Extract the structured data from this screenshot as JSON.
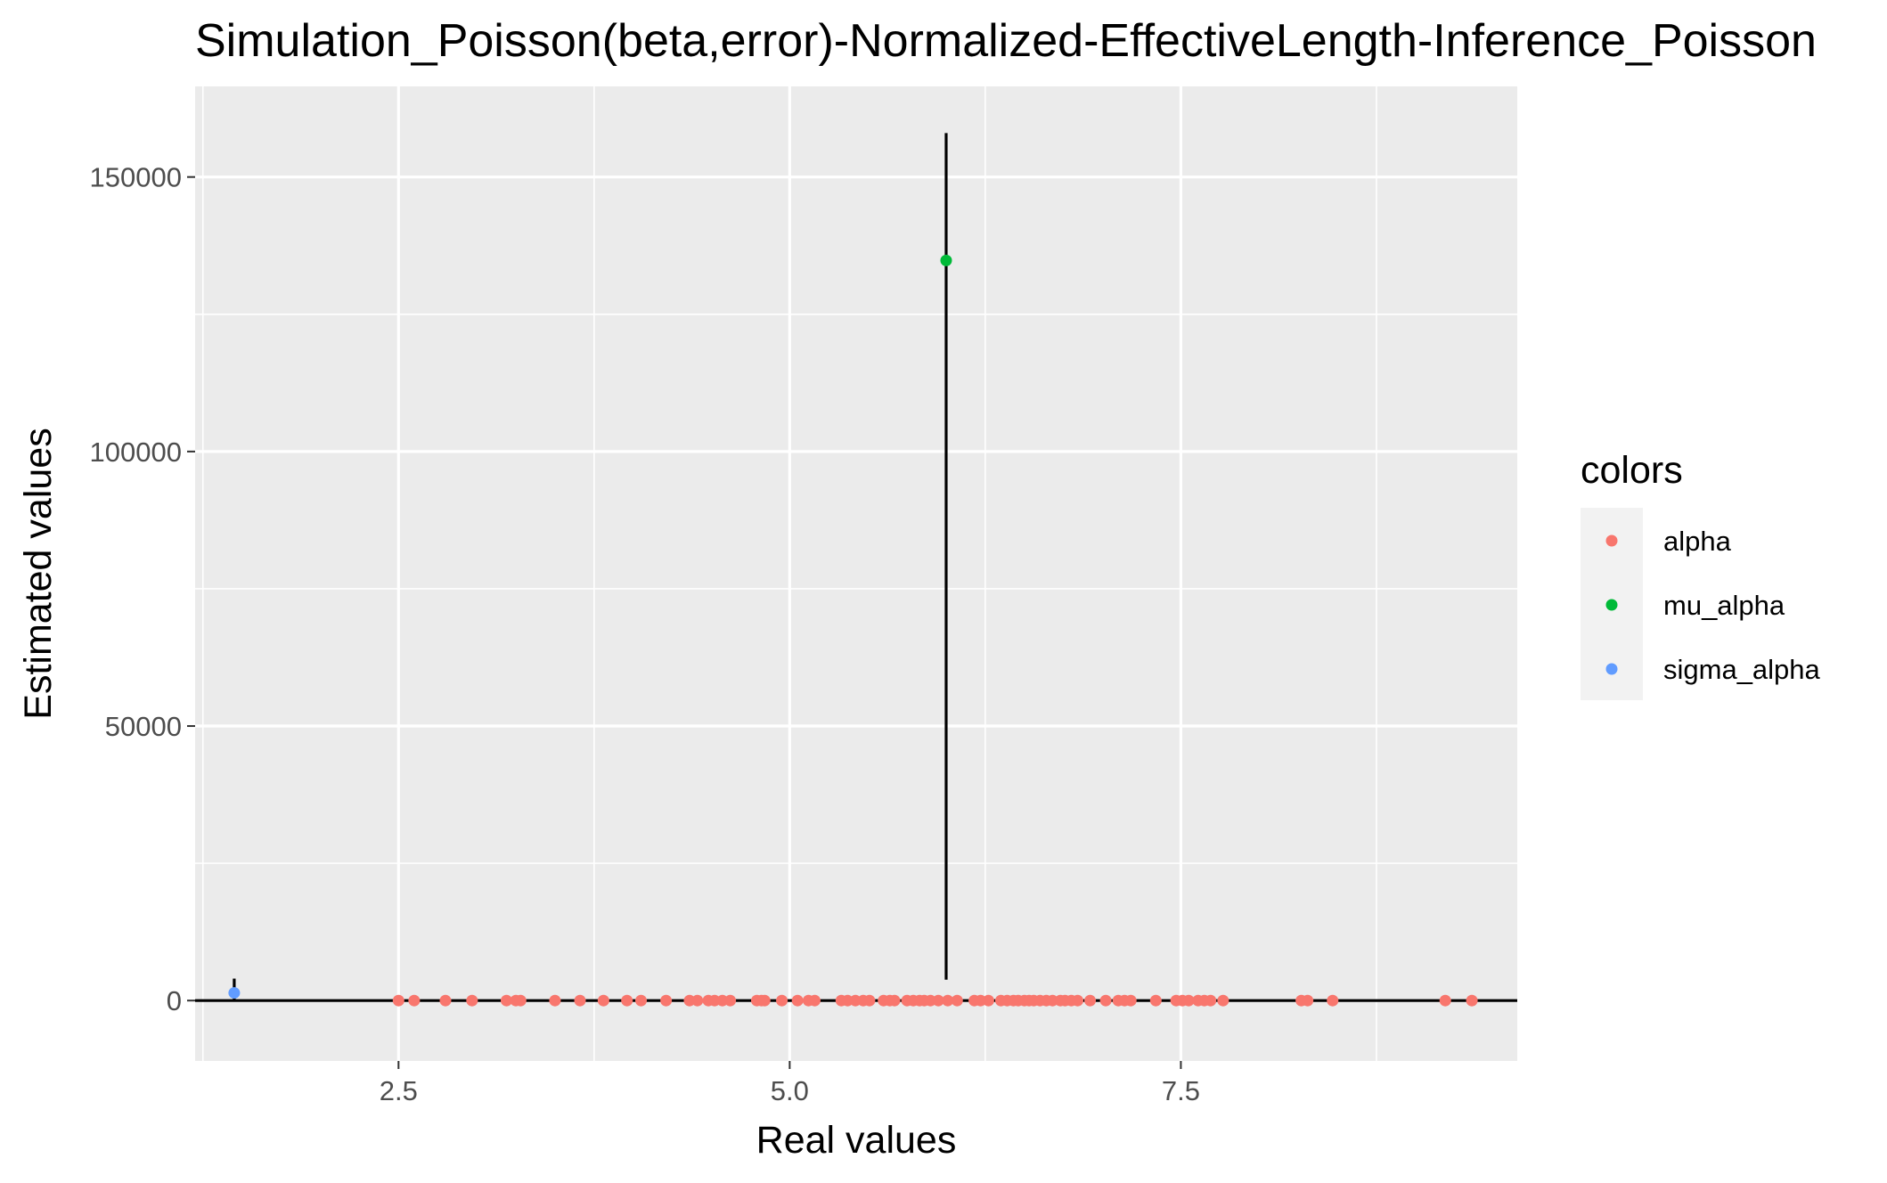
{
  "chart_data": {
    "type": "scatter",
    "title": "Simulation_Poisson(beta,error)-Normalized-EffectiveLength-Inference_Poisson",
    "xlabel": "Real values",
    "ylabel": "Estimated values",
    "xlim": [
      1.2,
      9.65
    ],
    "ylim": [
      -11000,
      166500
    ],
    "x_ticks": [
      2.5,
      5.0,
      7.5
    ],
    "x_tick_labels": [
      "2.5",
      "5.0",
      "7.5"
    ],
    "y_ticks": [
      0,
      50000,
      100000,
      150000
    ],
    "y_tick_labels": [
      "0",
      "50000",
      "100000",
      "150000"
    ],
    "grid": true,
    "background": "#ebebeb",
    "reference_line": {
      "y": 0,
      "color": "#000000"
    },
    "legend": {
      "title": "colors",
      "placement": "right",
      "entries": [
        {
          "label": "alpha",
          "color": "#f8766d"
        },
        {
          "label": "mu_alpha",
          "color": "#00ba38"
        },
        {
          "label": "sigma_alpha",
          "color": "#619cff"
        }
      ]
    },
    "series": [
      {
        "name": "alpha",
        "color": "#f8766d",
        "x": [
          2.5,
          2.6,
          2.8,
          2.97,
          3.19,
          3.25,
          3.28,
          3.5,
          3.66,
          3.81,
          3.96,
          4.05,
          4.21,
          4.36,
          4.41,
          4.48,
          4.52,
          4.57,
          4.62,
          4.79,
          4.82,
          4.84,
          4.95,
          5.05,
          5.12,
          5.16,
          5.33,
          5.37,
          5.42,
          5.47,
          5.51,
          5.6,
          5.64,
          5.67,
          5.75,
          5.79,
          5.83,
          5.86,
          5.9,
          5.95,
          6.01,
          6.07,
          6.18,
          6.22,
          6.27,
          6.35,
          6.39,
          6.43,
          6.46,
          6.5,
          6.53,
          6.56,
          6.6,
          6.64,
          6.68,
          6.73,
          6.76,
          6.8,
          6.84,
          6.92,
          7.02,
          7.1,
          7.14,
          7.18,
          7.34,
          7.47,
          7.51,
          7.55,
          7.61,
          7.65,
          7.69,
          7.77,
          8.27,
          8.31,
          8.47,
          9.19,
          9.36
        ],
        "y": [
          0,
          0,
          0,
          0,
          0,
          0,
          0,
          0,
          0,
          0,
          0,
          0,
          0,
          0,
          0,
          0,
          0,
          0,
          0,
          0,
          0,
          0,
          0,
          0,
          0,
          0,
          0,
          0,
          0,
          0,
          0,
          0,
          0,
          0,
          0,
          0,
          0,
          0,
          0,
          0,
          0,
          0,
          0,
          0,
          0,
          0,
          0,
          0,
          0,
          0,
          0,
          0,
          0,
          0,
          0,
          0,
          0,
          0,
          0,
          0,
          0,
          0,
          0,
          0,
          0,
          0,
          0,
          0,
          0,
          0,
          0,
          0,
          0,
          0,
          0,
          0,
          0
        ]
      },
      {
        "name": "mu_alpha",
        "color": "#00ba38",
        "x": [
          6.0
        ],
        "y": [
          134800
        ],
        "err_low": [
          3800
        ],
        "err_high": [
          158000
        ]
      },
      {
        "name": "sigma_alpha",
        "color": "#619cff",
        "x": [
          1.45
        ],
        "y": [
          1400
        ],
        "err_low": [
          0
        ],
        "err_high": [
          4000
        ]
      }
    ]
  }
}
